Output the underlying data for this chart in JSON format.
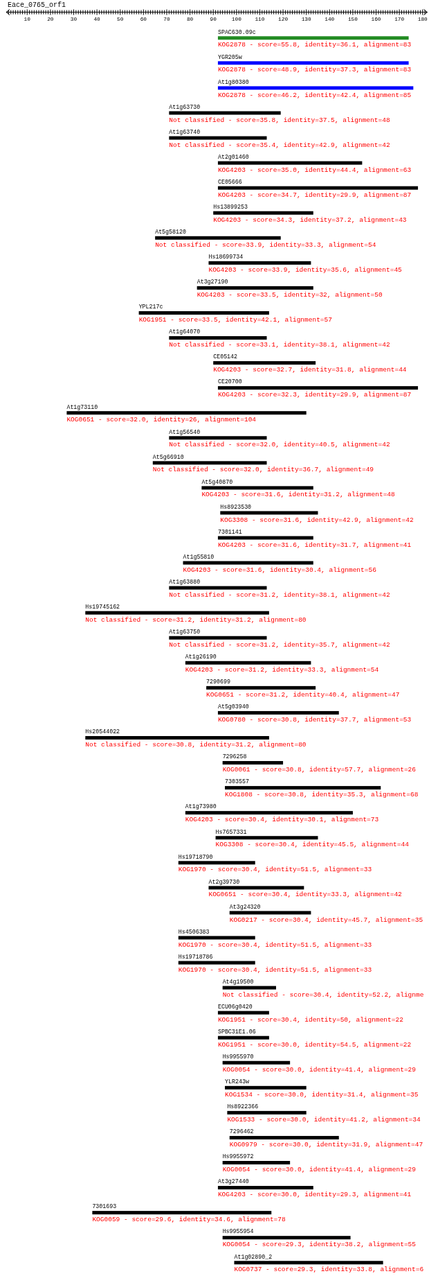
{
  "chart_data": {
    "type": "bar",
    "orientation": "horizontal",
    "title": "Eace_0765_orf1",
    "categories": [
      "SPAC630.09c",
      "YGR205w",
      "At1g80380",
      "At1g63730",
      "At1g63740",
      "At2g01460",
      "CE05666",
      "Hs13899253",
      "At5g58120",
      "Hs18699734",
      "At3g27190",
      "YPL217c",
      "At1g64070",
      "CE05142",
      "CE20700",
      "At1g73110",
      "At1g56540",
      "At5g66910",
      "At5g40870",
      "Hs8923530",
      "7301141",
      "At1g55810",
      "At1g63880",
      "Hs19745162",
      "At1g63750",
      "At1g26190",
      "7290699",
      "At5g03940",
      "Hs20544022",
      "7296258",
      "7303557",
      "At1g73980",
      "Hs7657331",
      "Hs19718790",
      "At2g39730",
      "At3g24320",
      "Hs4506383",
      "Hs19718786",
      "At4g19500",
      "ECU06g0420",
      "SPBC31E1.06",
      "Hs9955970",
      "YLR243w",
      "Hs8922366",
      "7296462",
      "Hs9955972",
      "At3g27440",
      "7301693",
      "Hs9955954",
      "At1g02890_2"
    ],
    "base": [
      92,
      92,
      92,
      71,
      71,
      92,
      92,
      90,
      65,
      88,
      83,
      58,
      71,
      90,
      92,
      27,
      71,
      64,
      85,
      93,
      92,
      77,
      71,
      35,
      71,
      78,
      87,
      92,
      35,
      94,
      95,
      78,
      91,
      75,
      88,
      97,
      75,
      75,
      94,
      92,
      92,
      94,
      95,
      96,
      97,
      94,
      92,
      38,
      94,
      99
    ],
    "values": [
      82,
      82,
      84,
      48,
      42,
      62,
      86,
      43,
      54,
      44,
      50,
      56,
      42,
      44,
      86,
      103,
      42,
      49,
      48,
      42,
      41,
      56,
      42,
      79,
      42,
      54,
      47,
      52,
      79,
      26,
      67,
      72,
      44,
      33,
      41,
      35,
      33,
      33,
      23,
      22,
      22,
      29,
      35,
      34,
      47,
      29,
      41,
      77,
      55,
      64
    ],
    "colors": [
      "#228b22",
      "#0000ff",
      "#0000ff",
      "#000000",
      "#000000",
      "#000000",
      "#000000",
      "#000000",
      "#000000",
      "#000000",
      "#000000",
      "#000000",
      "#000000",
      "#000000",
      "#000000",
      "#000000",
      "#000000",
      "#000000",
      "#000000",
      "#000000",
      "#000000",
      "#000000",
      "#000000",
      "#000000",
      "#000000",
      "#000000",
      "#000000",
      "#000000",
      "#000000",
      "#000000",
      "#000000",
      "#000000",
      "#000000",
      "#000000",
      "#000000",
      "#000000",
      "#000000",
      "#000000",
      "#000000",
      "#000000",
      "#000000",
      "#000000",
      "#000000",
      "#000000",
      "#000000",
      "#000000",
      "#000000",
      "#000000",
      "#000000",
      "#000000"
    ],
    "xlim": [
      1,
      182
    ],
    "xticks": [
      {
        "value": 2,
        "label": null
      },
      {
        "value": 3,
        "label": null
      },
      {
        "value": 4,
        "label": null
      },
      {
        "value": 5,
        "label": null
      },
      {
        "value": 6,
        "label": null
      },
      {
        "value": 7,
        "label": null
      },
      {
        "value": 8,
        "label": null
      },
      {
        "value": 9,
        "label": null
      },
      10,
      {
        "value": 11,
        "label": null
      },
      {
        "value": 12,
        "label": null
      },
      {
        "value": 13,
        "label": null
      },
      {
        "value": 14,
        "label": null
      },
      {
        "value": 15,
        "label": null
      },
      {
        "value": 16,
        "label": null
      },
      {
        "value": 17,
        "label": null
      },
      {
        "value": 18,
        "label": null
      },
      {
        "value": 19,
        "label": null
      },
      20,
      {
        "value": 21,
        "label": null
      },
      {
        "value": 22,
        "label": null
      },
      {
        "value": 23,
        "label": null
      },
      {
        "value": 24,
        "label": null
      },
      {
        "value": 25,
        "label": null
      },
      {
        "value": 26,
        "label": null
      },
      {
        "value": 27,
        "label": null
      },
      {
        "value": 28,
        "label": null
      },
      {
        "value": 29,
        "label": null
      },
      30,
      {
        "value": 31,
        "label": null
      },
      {
        "value": 32,
        "label": null
      },
      {
        "value": 33,
        "label": null
      },
      {
        "value": 34,
        "label": null
      },
      {
        "value": 35,
        "label": null
      },
      {
        "value": 36,
        "label": null
      },
      {
        "value": 37,
        "label": null
      },
      {
        "value": 38,
        "label": null
      },
      {
        "value": 39,
        "label": null
      },
      40,
      {
        "value": 41,
        "label": null
      },
      {
        "value": 42,
        "label": null
      },
      {
        "value": 43,
        "label": null
      },
      {
        "value": 44,
        "label": null
      },
      {
        "value": 45,
        "label": null
      },
      {
        "value": 46,
        "label": null
      },
      {
        "value": 47,
        "label": null
      },
      {
        "value": 48,
        "label": null
      },
      {
        "value": 49,
        "label": null
      },
      50,
      {
        "value": 51,
        "label": null
      },
      {
        "value": 52,
        "label": null
      },
      {
        "value": 53,
        "label": null
      },
      {
        "value": 54,
        "label": null
      },
      {
        "value": 55,
        "label": null
      },
      {
        "value": 56,
        "label": null
      },
      {
        "value": 57,
        "label": null
      },
      {
        "value": 58,
        "label": null
      },
      {
        "value": 59,
        "label": null
      },
      60,
      {
        "value": 61,
        "label": null
      },
      {
        "value": 62,
        "label": null
      },
      {
        "value": 63,
        "label": null
      },
      {
        "value": 64,
        "label": null
      },
      {
        "value": 65,
        "label": null
      },
      {
        "value": 66,
        "label": null
      },
      {
        "value": 67,
        "label": null
      },
      {
        "value": 68,
        "label": null
      },
      {
        "value": 69,
        "label": null
      },
      70,
      {
        "value": 71,
        "label": null
      },
      {
        "value": 72,
        "label": null
      },
      {
        "value": 73,
        "label": null
      },
      {
        "value": 74,
        "label": null
      },
      {
        "value": 75,
        "label": null
      },
      {
        "value": 76,
        "label": null
      },
      {
        "value": 77,
        "label": null
      },
      {
        "value": 78,
        "label": null
      },
      {
        "value": 79,
        "label": null
      },
      80,
      {
        "value": 81,
        "label": null
      },
      {
        "value": 82,
        "label": null
      },
      {
        "value": 83,
        "label": null
      },
      {
        "value": 84,
        "label": null
      },
      {
        "value": 85,
        "label": null
      },
      {
        "value": 86,
        "label": null
      },
      {
        "value": 87,
        "label": null
      },
      {
        "value": 88,
        "label": null
      },
      {
        "value": 89,
        "label": null
      },
      90,
      {
        "value": 91,
        "label": null
      },
      {
        "value": 92,
        "label": null
      },
      {
        "value": 93,
        "label": null
      },
      {
        "value": 94,
        "label": null
      },
      {
        "value": 95,
        "label": null
      },
      {
        "value": 96,
        "label": null
      },
      {
        "value": 97,
        "label": null
      },
      {
        "value": 98,
        "label": null
      },
      {
        "value": 99,
        "label": null
      },
      100,
      {
        "value": 101,
        "label": null
      },
      {
        "value": 102,
        "label": null
      },
      {
        "value": 103,
        "label": null
      },
      {
        "value": 104,
        "label": null
      },
      {
        "value": 105,
        "label": null
      },
      {
        "value": 106,
        "label": null
      },
      {
        "value": 107,
        "label": null
      },
      {
        "value": 108,
        "label": null
      },
      {
        "value": 109,
        "label": null
      },
      110,
      {
        "value": 111,
        "label": null
      },
      {
        "value": 112,
        "label": null
      },
      {
        "value": 113,
        "label": null
      },
      {
        "value": 114,
        "label": null
      },
      {
        "value": 115,
        "label": null
      },
      {
        "value": 116,
        "label": null
      },
      {
        "value": 117,
        "label": null
      },
      {
        "value": 118,
        "label": null
      },
      {
        "value": 119,
        "label": null
      },
      120,
      {
        "value": 121,
        "label": null
      },
      {
        "value": 122,
        "label": null
      },
      {
        "value": 123,
        "label": null
      },
      {
        "value": 124,
        "label": null
      },
      {
        "value": 125,
        "label": null
      },
      {
        "value": 126,
        "label": null
      },
      {
        "value": 127,
        "label": null
      },
      {
        "value": 128,
        "label": null
      },
      {
        "value": 129,
        "label": null
      },
      130,
      {
        "value": 131,
        "label": null
      },
      {
        "value": 132,
        "label": null
      },
      {
        "value": 133,
        "label": null
      },
      {
        "value": 134,
        "label": null
      },
      {
        "value": 135,
        "label": null
      },
      {
        "value": 136,
        "label": null
      },
      {
        "value": 137,
        "label": null
      },
      {
        "value": 138,
        "label": null
      },
      {
        "value": 139,
        "label": null
      },
      140,
      {
        "value": 141,
        "label": null
      },
      {
        "value": 142,
        "label": null
      },
      {
        "value": 143,
        "label": null
      },
      {
        "value": 144,
        "label": null
      },
      {
        "value": 145,
        "label": null
      },
      {
        "value": 146,
        "label": null
      },
      {
        "value": 147,
        "label": null
      },
      {
        "value": 148,
        "label": null
      },
      {
        "value": 149,
        "label": null
      },
      150,
      {
        "value": 151,
        "label": null
      },
      {
        "value": 152,
        "label": null
      },
      {
        "value": 153,
        "label": null
      },
      {
        "value": 154,
        "label": null
      },
      {
        "value": 155,
        "label": null
      },
      {
        "value": 156,
        "label": null
      },
      {
        "value": 157,
        "label": null
      },
      {
        "value": 158,
        "label": null
      },
      {
        "value": 159,
        "label": null
      },
      160,
      {
        "value": 161,
        "label": null
      },
      {
        "value": 162,
        "label": null
      },
      {
        "value": 163,
        "label": null
      },
      {
        "value": 164,
        "label": null
      },
      {
        "value": 165,
        "label": null
      },
      {
        "value": 166,
        "label": null
      },
      {
        "value": 167,
        "label": null
      },
      {
        "value": 168,
        "label": null
      },
      {
        "value": 169,
        "label": null
      },
      170,
      {
        "value": 171,
        "label": null
      },
      {
        "value": 172,
        "label": null
      },
      {
        "value": 173,
        "label": null
      },
      {
        "value": 174,
        "label": null
      },
      {
        "value": 175,
        "label": null
      },
      {
        "value": 176,
        "label": null
      },
      {
        "value": 177,
        "label": null
      },
      {
        "value": 178,
        "label": null
      },
      {
        "value": 179,
        "label": null
      },
      180,
      {
        "value": 181,
        "label": null
      }
    ],
    "annotations": [
      "KOG2878 - score=55.8, identity=36.1, alignment=83",
      "KOG2878 - score=48.9, identity=37.3, alignment=83",
      "KOG2878 - score=46.2, identity=42.4, alignment=85",
      "Not classified - score=35.8, identity=37.5, alignment=48",
      "Not classified - score=35.4, identity=42.9, alignment=42",
      "KOG4203 - score=35.0, identity=44.4, alignment=63",
      "KOG4203 - score=34.7, identity=29.9, alignment=87",
      "KOG4203 - score=34.3, identity=37.2, alignment=43",
      "Not classified - score=33.9, identity=33.3, alignment=54",
      "KOG4203 - score=33.9, identity=35.6, alignment=45",
      "KOG4203 - score=33.5, identity=32, alignment=50",
      "KOG1951 - score=33.5, identity=42.1, alignment=57",
      "Not classified - score=33.1, identity=38.1, alignment=42",
      "KOG4203 - score=32.7, identity=31.8, alignment=44",
      "KOG4203 - score=32.3, identity=29.9, alignment=87",
      "KOG0651 - score=32.0, identity=26, alignment=104",
      "Not classified - score=32.0, identity=40.5, alignment=42",
      "Not classified - score=32.0, identity=36.7, alignment=49",
      "KOG4203 - score=31.6, identity=31.2, alignment=48",
      "KOG3308 - score=31.6, identity=42.9, alignment=42",
      "KOG4203 - score=31.6, identity=31.7, alignment=41",
      "KOG4203 - score=31.6, identity=30.4, alignment=56",
      "Not classified - score=31.2, identity=38.1, alignment=42",
      "Not classified - score=31.2, identity=31.2, alignment=80",
      "Not classified - score=31.2, identity=35.7, alignment=42",
      "KOG4203 - score=31.2, identity=33.3, alignment=54",
      "KOG0651 - score=31.2, identity=40.4, alignment=47",
      "KOG0780 - score=30.8, identity=37.7, alignment=53",
      "Not classified - score=30.8, identity=31.2, alignment=80",
      "KOG0061 - score=30.8, identity=57.7, alignment=26",
      "KOG1808 - score=30.8, identity=35.3, alignment=68",
      "KOG4203 - score=30.4, identity=30.1, alignment=73",
      "KOG3308 - score=30.4, identity=45.5, alignment=44",
      "KOG1970 - score=30.4, identity=51.5, alignment=33",
      "KOG0651 - score=30.4, identity=33.3, alignment=42",
      "KOG0217 - score=30.4, identity=45.7, alignment=35",
      "KOG1970 - score=30.4, identity=51.5, alignment=33",
      "KOG1970 - score=30.4, identity=51.5, alignment=33",
      "Not classified - score=30.4, identity=52.2, alignme",
      "KOG1951 - score=30.4, identity=50, alignment=22",
      "KOG1951 - score=30.0, identity=54.5, alignment=22",
      "KOG0054 - score=30.0, identity=41.4, alignment=29",
      "KOG1534 - score=30.0, identity=31.4, alignment=35",
      "KOG1533 - score=30.0, identity=41.2, alignment=34",
      "KOG0979 - score=30.0, identity=31.9, alignment=47",
      "KOG0054 - score=30.0, identity=41.4, alignment=29",
      "KOG4203 - score=30.0, identity=29.3, alignment=41",
      "KOG0059 - score=29.6, identity=34.6, alignment=78",
      "KOG0054 - score=29.3, identity=38.2, alignment=55",
      "KOG0737 - score=29.3, identity=33.8, alignment=6"
    ]
  }
}
